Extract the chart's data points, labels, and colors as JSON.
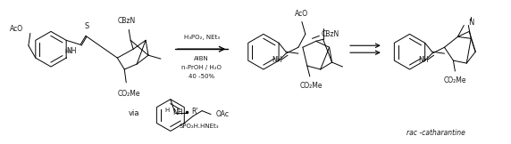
{
  "background_color": "#ffffff",
  "fig_width": 5.72,
  "fig_height": 1.62,
  "dpi": 100,
  "reagents_line1": "H₃PO₂, NEt₃",
  "reagents_line2": "AIBN",
  "reagents_line3": "n-PrOH / H₂O",
  "reagents_line4": "40 -50%",
  "label_rac": "rac -catharantine",
  "label_via": "via",
  "text_color": "#1a1a1a"
}
